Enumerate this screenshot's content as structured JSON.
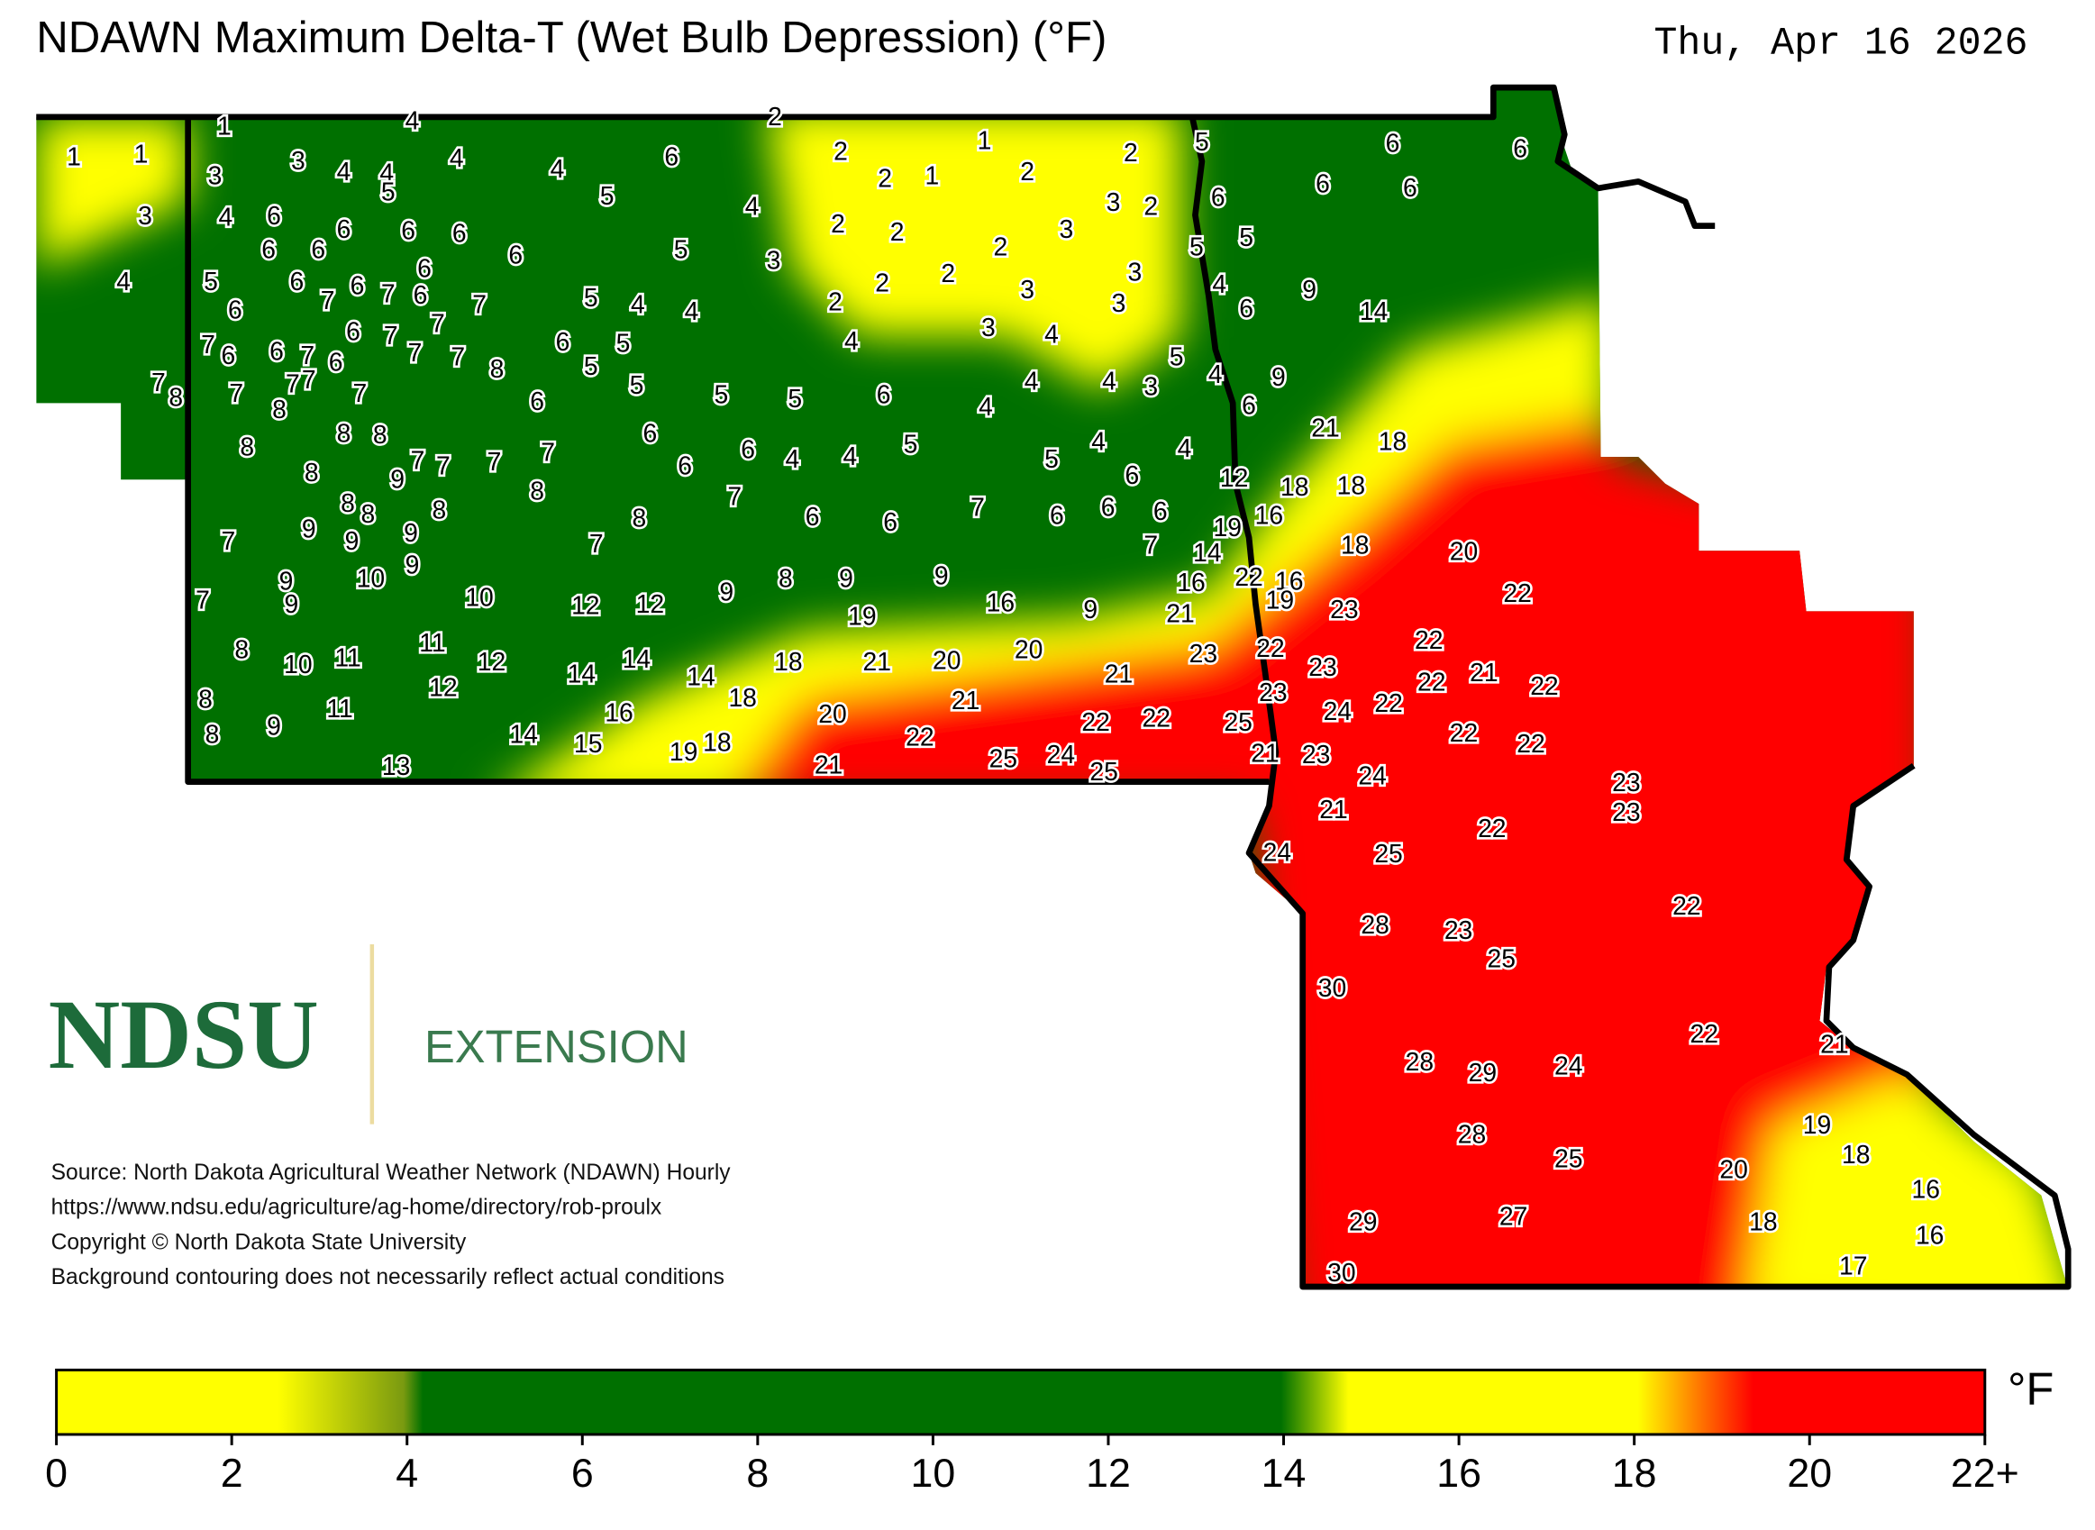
{
  "header": {
    "title": "NDAWN Maximum Delta-T (Wet Bulb Depression) (°F)",
    "date": "Thu, Apr 16 2026"
  },
  "stations": [
    1,
    4,
    2,
    1,
    1,
    3,
    3,
    4,
    4,
    5,
    4,
    4,
    6,
    5,
    4,
    2,
    1,
    2,
    1,
    2,
    2,
    5,
    6,
    6,
    6,
    6,
    6,
    3,
    2,
    3,
    4,
    6,
    6,
    6,
    6,
    6,
    6,
    6,
    6,
    5,
    3,
    2,
    2,
    2,
    3,
    5,
    5,
    4,
    5,
    6,
    6,
    7,
    6,
    7,
    6,
    7,
    7,
    5,
    4,
    4,
    2,
    2,
    2,
    3,
    3,
    3,
    4,
    6,
    9,
    14,
    7,
    6,
    6,
    7,
    6,
    6,
    7,
    7,
    7,
    8,
    6,
    5,
    5,
    4,
    3,
    4,
    5,
    4,
    9,
    4,
    4,
    3,
    7,
    8,
    7,
    7,
    7,
    8,
    7,
    6,
    5,
    5,
    5,
    6,
    4,
    6,
    21,
    18,
    8,
    8,
    8,
    6,
    4,
    4,
    6,
    4,
    4,
    5,
    5,
    6,
    7,
    7,
    7,
    7,
    8,
    9,
    6,
    12,
    18,
    18,
    8,
    8,
    8,
    8,
    7,
    6,
    6,
    7,
    6,
    6,
    6,
    19,
    16,
    7,
    9,
    9,
    9,
    8,
    7,
    7,
    14,
    18,
    20,
    9,
    9,
    10,
    8,
    9,
    9,
    16,
    22,
    16,
    7,
    9,
    10,
    12,
    12,
    9,
    16,
    19,
    23,
    22,
    19,
    9,
    21,
    8,
    10,
    11,
    11,
    12,
    14,
    14,
    14,
    18,
    21,
    20,
    20,
    23,
    22,
    23,
    22,
    22,
    21,
    22,
    21,
    8,
    12,
    11,
    18,
    21,
    23,
    24,
    22,
    8,
    9,
    14,
    16,
    20,
    22,
    22,
    22,
    25,
    22,
    22,
    15,
    19,
    18,
    25,
    24,
    21,
    23,
    13,
    21,
    25,
    24,
    23,
    23,
    21,
    22,
    24,
    25,
    22,
    28,
    23,
    25,
    30,
    22,
    21,
    28,
    29,
    24,
    19,
    28,
    18,
    25,
    20,
    16,
    29,
    27,
    18,
    16,
    30,
    17
  ],
  "logo": {
    "name": "NDSU",
    "unit": "EXTENSION"
  },
  "notes": [
    "Source: North Dakota Agricultural Weather Network (NDAWN) Hourly",
    "https://www.ndsu.edu/agriculture/ag-home/directory/rob-proulx",
    "Copyright © North Dakota State University",
    "Background contouring does not necessarily reflect actual conditions"
  ],
  "colorbar": {
    "unit": "°F",
    "lim": [
      0,
      22
    ],
    "ticks": [
      0,
      2,
      4,
      6,
      8,
      10,
      12,
      14,
      16,
      18,
      20,
      {
        "value": 22,
        "label": "22+"
      }
    ]
  }
}
